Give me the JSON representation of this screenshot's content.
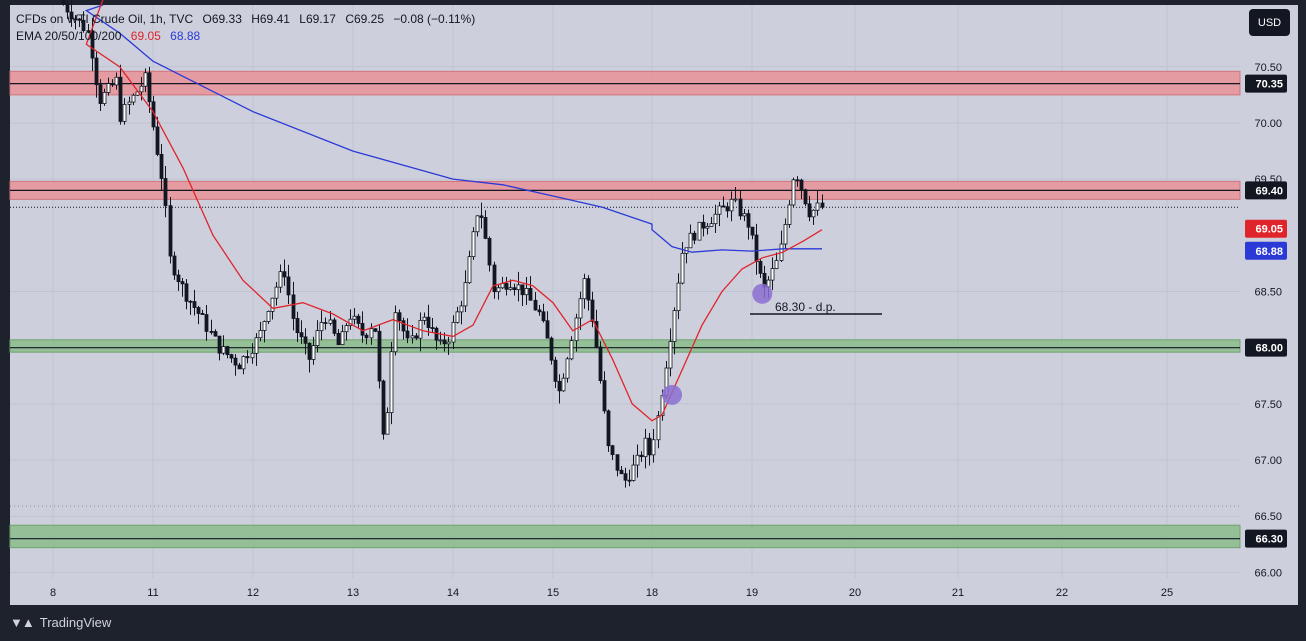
{
  "header": {
    "symbol": "CFDs on WTI Crude Oil, 1h, TVC",
    "open": "O69.33",
    "high": "H69.41",
    "low": "L69.17",
    "close": "C69.25",
    "change": "−0.08 (−0.11%)",
    "ema_label": "EMA 20/50/100/200",
    "ema_red_value": "69.05",
    "ema_blue_value": "68.88"
  },
  "currency_button": "USD",
  "branding": "TradingView",
  "colors": {
    "background": "#cdd0dc",
    "resistance_zone": "#e8959b",
    "support_zone": "#8fbd8f",
    "ema_fast": "#e0242b",
    "ema_slow": "#2b39d6",
    "marker": "#8a6fd0"
  },
  "chart_data": {
    "type": "candlestick",
    "x_tick_labels": [
      "8",
      "11",
      "12",
      "13",
      "14",
      "15",
      "18",
      "19",
      "20",
      "21",
      "22",
      "25"
    ],
    "y_tick_labels": [
      "70.50",
      "70.00",
      "69.50",
      "68.50",
      "67.50",
      "67.00",
      "66.50",
      "66.00"
    ],
    "ylim": [
      65.95,
      71.05
    ],
    "grid": true,
    "horizontal_levels": [
      {
        "value": 70.35,
        "label": "70.35",
        "zone": [
          70.25,
          70.46
        ],
        "zone_type": "resistance"
      },
      {
        "value": 69.4,
        "label": "69.40",
        "zone": [
          69.32,
          69.48
        ],
        "zone_type": "resistance"
      },
      {
        "value": 68.0,
        "label": "68.00",
        "zone": [
          67.96,
          68.07
        ],
        "zone_type": "support"
      },
      {
        "value": 66.3,
        "label": "66.30",
        "zone": [
          66.22,
          66.42
        ],
        "zone_type": "support"
      }
    ],
    "ema_last": [
      {
        "label": "69.05",
        "value": 69.05,
        "color": "#e0242b"
      },
      {
        "label": "68.88",
        "value": 68.88,
        "color": "#2b39d6"
      }
    ],
    "annotation": {
      "text": "68.30 - d.p.",
      "value": 68.3
    },
    "markers": [
      {
        "x": 18.2,
        "y": 67.58
      },
      {
        "x": 19.1,
        "y": 68.48
      }
    ],
    "price_path": [
      [
        8.1,
        71.1
      ],
      [
        8.4,
        70.8
      ],
      [
        8.5,
        70.2
      ],
      [
        8.7,
        70.4
      ],
      [
        9.0,
        70.1
      ],
      [
        10.0,
        70.0
      ],
      [
        10.9,
        70.4
      ],
      [
        11.0,
        70.2
      ],
      [
        11.15,
        69.4
      ],
      [
        11.2,
        68.8
      ],
      [
        11.35,
        68.5
      ],
      [
        11.5,
        68.3
      ],
      [
        11.7,
        68.0
      ],
      [
        11.9,
        67.85
      ],
      [
        12.1,
        68.1
      ],
      [
        12.2,
        68.4
      ],
      [
        12.35,
        68.7
      ],
      [
        12.45,
        68.2
      ],
      [
        12.6,
        67.9
      ],
      [
        12.75,
        68.3
      ],
      [
        12.9,
        68.0
      ],
      [
        13.0,
        68.3
      ],
      [
        13.15,
        68.1
      ],
      [
        13.25,
        68.25
      ],
      [
        13.35,
        67.05
      ],
      [
        13.45,
        68.4
      ],
      [
        13.6,
        68.0
      ],
      [
        13.75,
        68.3
      ],
      [
        13.9,
        68.0
      ],
      [
        14.0,
        68.1
      ],
      [
        14.15,
        68.5
      ],
      [
        14.3,
        69.3
      ],
      [
        14.45,
        68.5
      ],
      [
        14.6,
        68.6
      ],
      [
        14.75,
        68.5
      ],
      [
        14.9,
        68.3
      ],
      [
        15.0,
        68.0
      ],
      [
        15.1,
        67.6
      ],
      [
        15.25,
        68.2
      ],
      [
        15.35,
        68.6
      ],
      [
        15.45,
        68.2
      ],
      [
        15.6,
        67.1
      ],
      [
        15.75,
        66.8
      ],
      [
        15.9,
        67.0
      ],
      [
        16.0,
        67.2
      ],
      [
        17.9,
        67.2
      ],
      [
        18.0,
        67.0
      ],
      [
        18.1,
        67.4
      ],
      [
        18.25,
        68.3
      ],
      [
        18.35,
        68.9
      ],
      [
        18.55,
        69.1
      ],
      [
        18.7,
        69.2
      ],
      [
        18.85,
        69.3
      ],
      [
        19.0,
        69.1
      ],
      [
        19.15,
        68.5
      ],
      [
        19.3,
        68.8
      ],
      [
        19.45,
        69.6
      ],
      [
        19.6,
        69.2
      ],
      [
        19.68,
        69.25
      ]
    ],
    "ema_fast_path": [
      [
        8.5,
        71.1
      ],
      [
        9.0,
        70.7
      ],
      [
        10.0,
        70.5
      ],
      [
        11.0,
        70.1
      ],
      [
        11.3,
        69.6
      ],
      [
        11.6,
        69.0
      ],
      [
        11.9,
        68.6
      ],
      [
        12.2,
        68.35
      ],
      [
        12.5,
        68.4
      ],
      [
        12.8,
        68.3
      ],
      [
        13.1,
        68.15
      ],
      [
        13.4,
        68.25
      ],
      [
        13.7,
        68.15
      ],
      [
        14.0,
        68.1
      ],
      [
        14.2,
        68.2
      ],
      [
        14.4,
        68.55
      ],
      [
        14.6,
        68.6
      ],
      [
        14.8,
        68.55
      ],
      [
        15.0,
        68.4
      ],
      [
        15.2,
        68.15
      ],
      [
        15.4,
        68.25
      ],
      [
        15.6,
        67.9
      ],
      [
        15.8,
        67.5
      ],
      [
        16.0,
        67.35
      ],
      [
        17.9,
        67.35
      ],
      [
        18.1,
        67.4
      ],
      [
        18.3,
        67.8
      ],
      [
        18.5,
        68.2
      ],
      [
        18.7,
        68.5
      ],
      [
        18.9,
        68.7
      ],
      [
        19.1,
        68.8
      ],
      [
        19.3,
        68.85
      ],
      [
        19.5,
        68.95
      ],
      [
        19.68,
        69.05
      ]
    ],
    "ema_slow_path": [
      [
        8.5,
        71.05
      ],
      [
        9.0,
        71.0
      ],
      [
        10.0,
        70.8
      ],
      [
        11.0,
        70.55
      ],
      [
        12.0,
        70.1
      ],
      [
        13.0,
        69.75
      ],
      [
        14.0,
        69.5
      ],
      [
        14.5,
        69.45
      ],
      [
        15.0,
        69.35
      ],
      [
        15.5,
        69.25
      ],
      [
        16.0,
        69.1
      ],
      [
        17.9,
        69.05
      ],
      [
        18.2,
        68.9
      ],
      [
        18.4,
        68.85
      ],
      [
        18.7,
        68.87
      ],
      [
        19.0,
        68.86
      ],
      [
        19.3,
        68.88
      ],
      [
        19.68,
        68.88
      ]
    ]
  }
}
